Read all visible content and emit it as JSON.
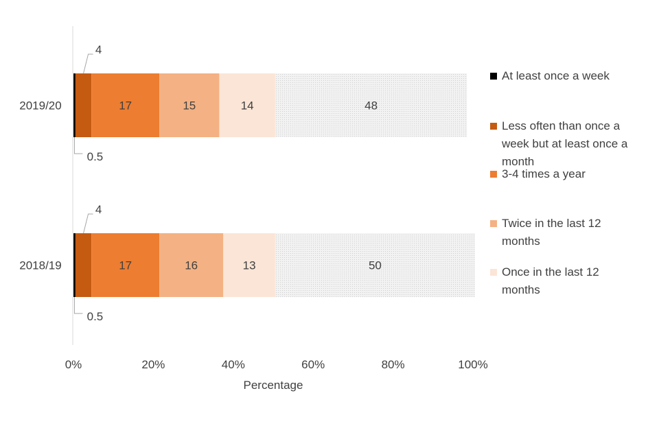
{
  "chart_data": {
    "type": "bar",
    "orientation": "horizontal",
    "stacked": true,
    "categories": [
      "2019/20",
      "2018/19"
    ],
    "series": [
      {
        "name": "At least once a week",
        "values": [
          0.5,
          0.5
        ],
        "color": "#000000"
      },
      {
        "name": "Less often than once a week but at least once a month",
        "values": [
          4,
          4
        ],
        "color": "#c55a11"
      },
      {
        "name": "3-4 times a year",
        "values": [
          17,
          17
        ],
        "color": "#ed7d31"
      },
      {
        "name": "Twice in the last 12 months",
        "values": [
          15,
          16
        ],
        "color": "#f4b183"
      },
      {
        "name": "Once in the last 12 months",
        "values": [
          14,
          13
        ],
        "color": "#fbe5d6"
      },
      {
        "name": "",
        "values": [
          48,
          50
        ],
        "color": "#ededed"
      }
    ],
    "data_labels": [
      [
        "0.5",
        "4",
        "17",
        "15",
        "14",
        "48"
      ],
      [
        "0.5",
        "4",
        "17",
        "16",
        "13",
        "50"
      ]
    ],
    "xlabel": "Percentage",
    "ylabel": "",
    "xlim": [
      0,
      100
    ],
    "x_ticks": [
      "0%",
      "20%",
      "40%",
      "60%",
      "80%",
      "100%"
    ],
    "grid": false,
    "legend_position": "right"
  }
}
